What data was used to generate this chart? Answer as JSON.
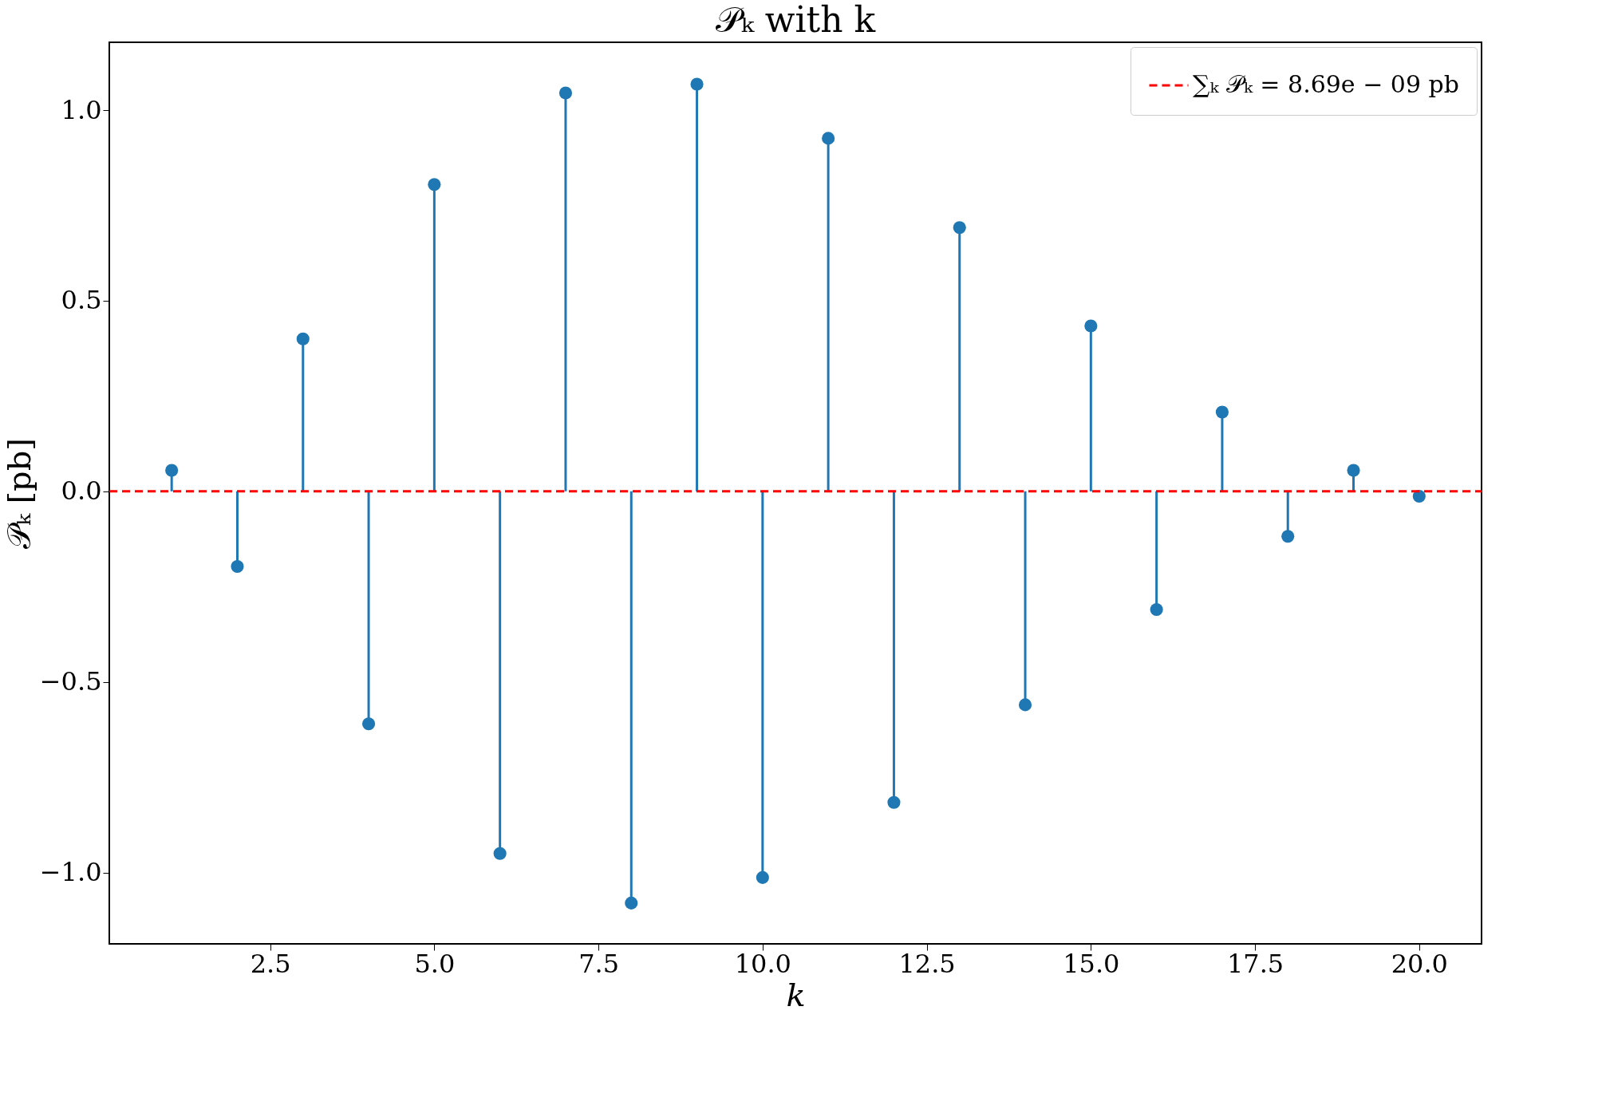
{
  "chart_data": {
    "type": "lollipop",
    "title": "𝒫ₖ with k",
    "xlabel": "k",
    "ylabel": "𝒫ₖ [pb]",
    "x": [
      1,
      2,
      3,
      4,
      5,
      6,
      7,
      8,
      9,
      10,
      11,
      12,
      13,
      14,
      15,
      16,
      17,
      18,
      19,
      20
    ],
    "series": [
      {
        "color": "#1f77b4",
        "marker": "circle",
        "values": [
          0.055,
          -0.197,
          0.4,
          -0.61,
          0.805,
          -0.95,
          1.045,
          -1.08,
          1.068,
          -1.013,
          0.926,
          -0.816,
          0.692,
          -0.56,
          0.434,
          -0.31,
          0.208,
          -0.118,
          0.055,
          -0.013
        ]
      },
      {
        "name": "∑ₖ 𝒫ₖ = 8.69e − 09 pb",
        "type": "line",
        "color": "#ff0000",
        "line_style": "dashed",
        "marker": "none",
        "x": [
          0.05,
          20.95
        ],
        "values": [
          0,
          0
        ]
      }
    ],
    "xlim": [
      0.05,
      20.95
    ],
    "ylim": [
      -1.187,
      1.178
    ],
    "xticks": [
      2.5,
      {
        "value": 5,
        "label": "5.0"
      },
      7.5,
      {
        "value": 10,
        "label": "10.0"
      },
      12.5,
      {
        "value": 15,
        "label": "15.0"
      },
      17.5,
      {
        "value": 20,
        "label": "20.0"
      }
    ],
    "yticks": [
      {
        "value": -1,
        "label": "−1.0"
      },
      -0.5,
      {
        "value": 0,
        "label": "0.0"
      },
      0.5,
      {
        "value": 1,
        "label": "1.0"
      }
    ],
    "legend": "top right",
    "grid": false
  }
}
